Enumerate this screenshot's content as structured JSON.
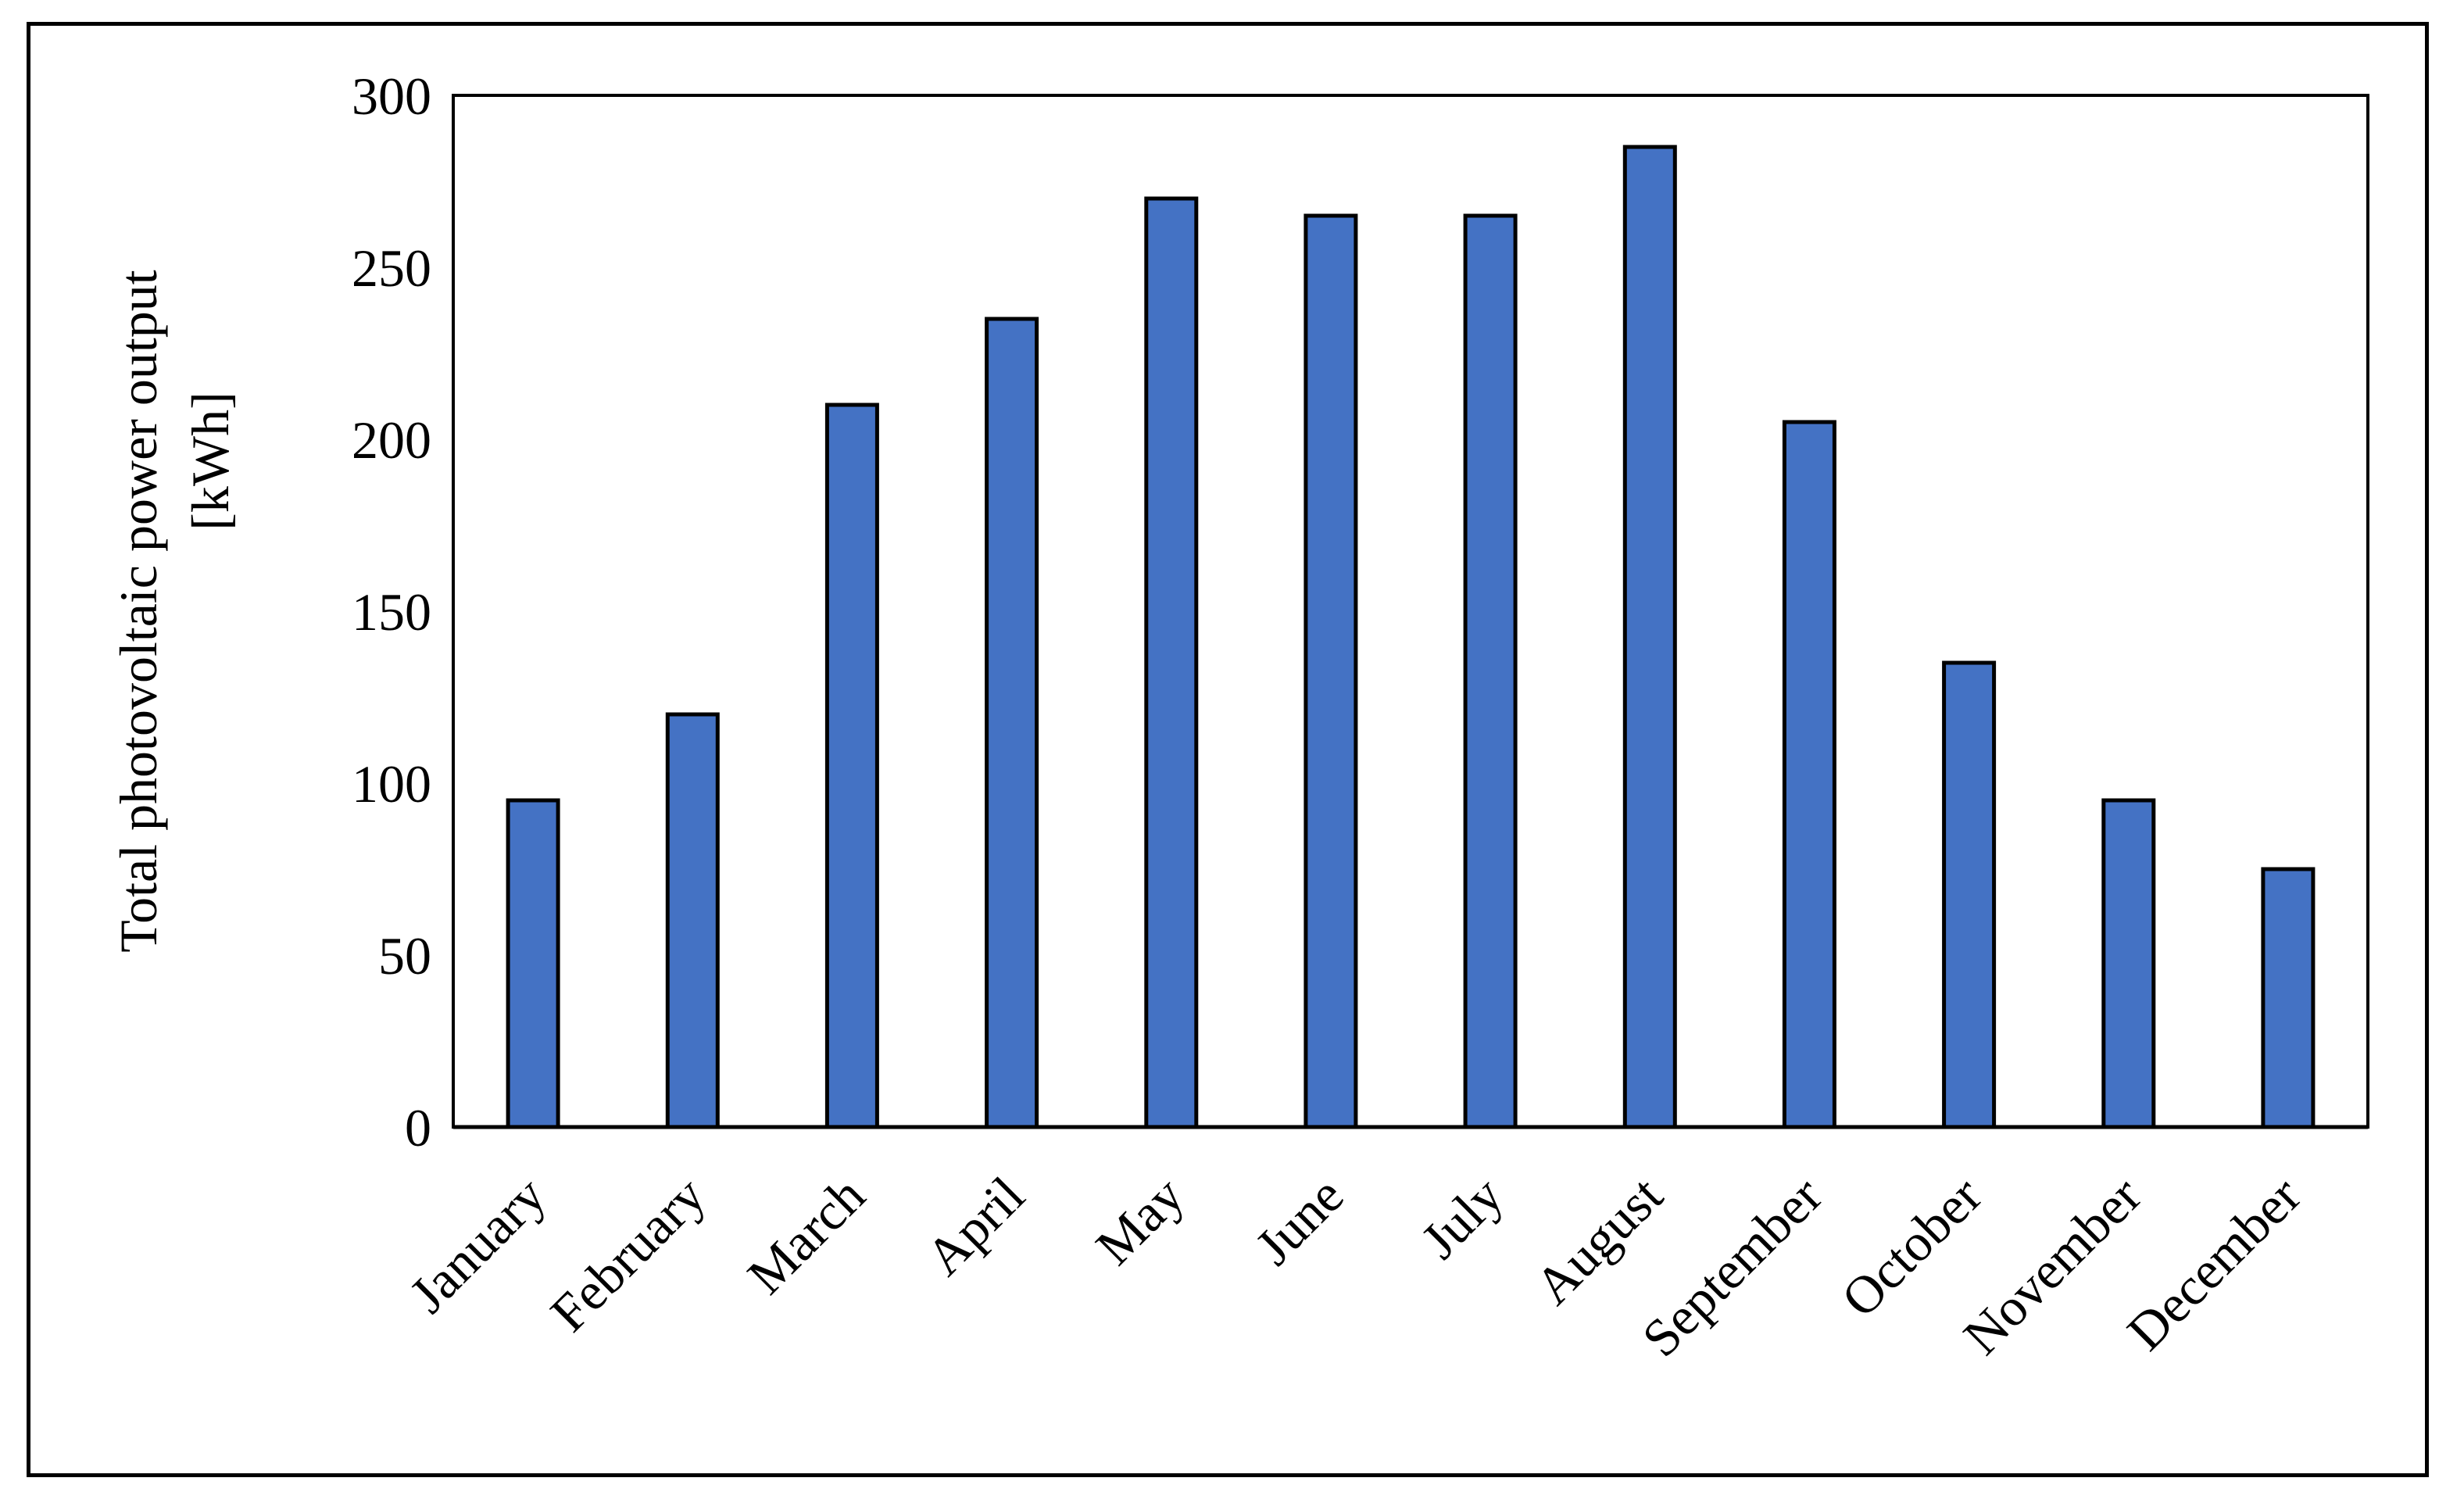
{
  "chart_data": {
    "type": "bar",
    "title": "",
    "xlabel": "",
    "ylabel": "Total photovoltaic power output [kWh]",
    "ylabel_lines": [
      "Total photovoltaic power output",
      "[kWh]"
    ],
    "categories": [
      "January",
      "February",
      "March",
      "April",
      "May",
      "June",
      "July",
      "August",
      "September",
      "October",
      "November",
      "December"
    ],
    "values": [
      95,
      120,
      210,
      235,
      270,
      265,
      265,
      285,
      205,
      135,
      95,
      75
    ],
    "ylim": [
      0,
      300
    ],
    "yticks": [
      0,
      50,
      100,
      150,
      200,
      250,
      300
    ],
    "grid": false,
    "legend": "none",
    "colors": {
      "bar_fill": "#4472C4",
      "bar_stroke": "#000000",
      "axis": "#000000"
    }
  }
}
